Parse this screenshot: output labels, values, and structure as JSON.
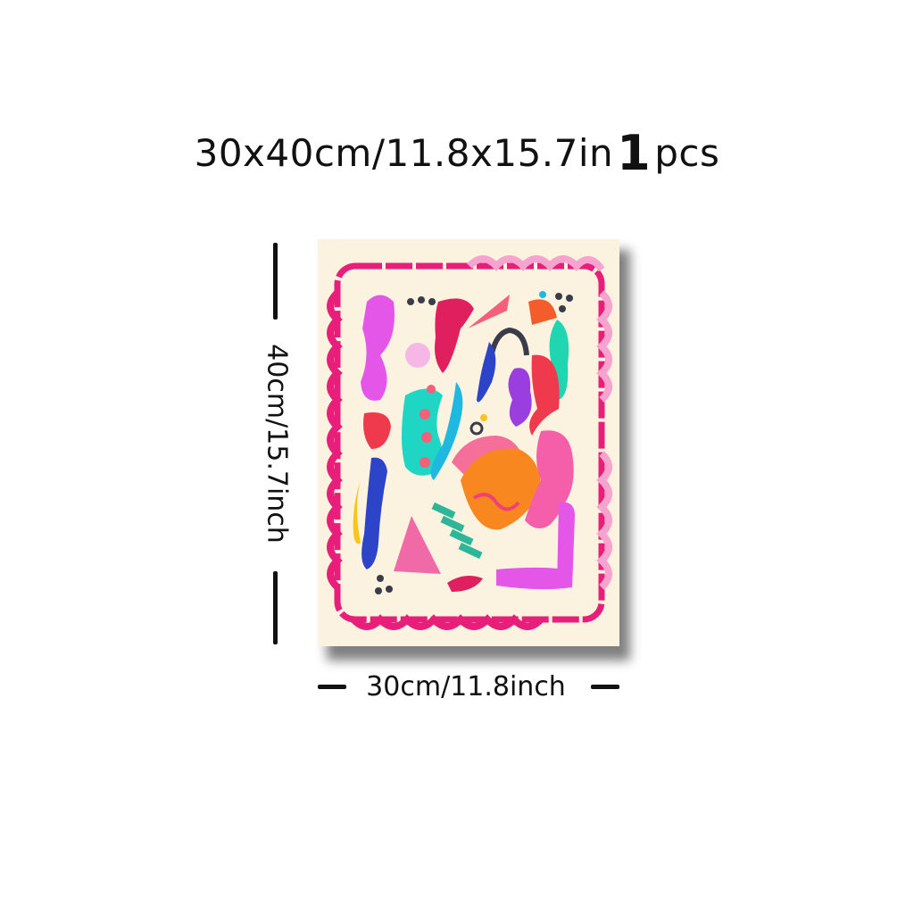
{
  "header": {
    "size_text": "30x40cm/11.8x15.7in",
    "quantity": "1",
    "quantity_unit": "pcs"
  },
  "dimensions": {
    "height_label": "40cm/15.7inch",
    "width_label": "30cm/11.8inch"
  },
  "colors": {
    "background": "#ffffff",
    "poster_base": "#fbf3df",
    "border_magenta": "#e81e7b",
    "border_pink": "#f6a3cf",
    "shape_violet": "#e356e8",
    "shape_red": "#ef3a4e",
    "shape_teal": "#1fd6c4",
    "shape_blue": "#2d44c9",
    "shape_orange": "#f7871e",
    "shape_yellow": "#f7c51e",
    "shape_pink": "#f55fa9",
    "shape_purple": "#9a3ee0"
  }
}
